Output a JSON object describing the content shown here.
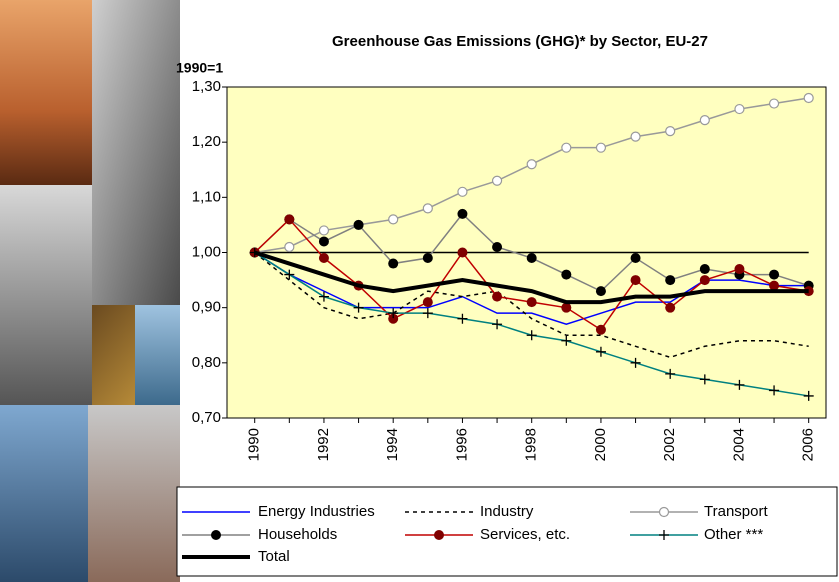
{
  "chart_data": {
    "type": "line",
    "title": "Greenhouse Gas Emissions (GHG)* by Sector, EU-27",
    "y_label": "1990=1",
    "x": [
      1990,
      1991,
      1992,
      1993,
      1994,
      1995,
      1996,
      1997,
      1998,
      1999,
      2000,
      2001,
      2002,
      2003,
      2004,
      2005,
      2006
    ],
    "xlim": [
      1989.2,
      2006.5
    ],
    "xticks": [
      1990,
      1992,
      1994,
      1996,
      1998,
      2000,
      2002,
      2004,
      2006
    ],
    "ylim": [
      0.7,
      1.3
    ],
    "yticks": [
      {
        "value": 0.7,
        "label": "0,70"
      },
      {
        "value": 0.8,
        "label": "0,80"
      },
      {
        "value": 0.9,
        "label": "0,90"
      },
      {
        "value": 1.0,
        "label": "1,00"
      },
      {
        "value": 1.1,
        "label": "1,10"
      },
      {
        "value": 1.2,
        "label": "1,20"
      },
      {
        "value": 1.3,
        "label": "1,30"
      }
    ],
    "reference_line": 1.0,
    "series": [
      {
        "name": "Energy Industries",
        "color": "#0000ff",
        "dash": "solid",
        "width": 1.5,
        "marker": "none",
        "values": [
          1.0,
          0.96,
          0.93,
          0.9,
          0.9,
          0.9,
          0.92,
          0.89,
          0.89,
          0.87,
          0.89,
          0.91,
          0.91,
          0.95,
          0.95,
          0.94,
          0.94
        ]
      },
      {
        "name": "Industry",
        "color": "#000000",
        "dash": "dashed",
        "width": 1.5,
        "marker": "none",
        "values": [
          1.0,
          0.95,
          0.9,
          0.88,
          0.89,
          0.93,
          0.92,
          0.93,
          0.88,
          0.85,
          0.85,
          0.83,
          0.81,
          0.83,
          0.84,
          0.84,
          0.83
        ]
      },
      {
        "name": "Transport",
        "color": "#999999",
        "dash": "solid",
        "width": 1.5,
        "marker": "circle-open",
        "values": [
          1.0,
          1.01,
          1.04,
          1.05,
          1.06,
          1.08,
          1.11,
          1.13,
          1.16,
          1.19,
          1.19,
          1.21,
          1.22,
          1.24,
          1.26,
          1.27,
          1.28
        ]
      },
      {
        "name": "Households",
        "color": "#808080",
        "dash": "solid",
        "width": 1.5,
        "marker": "circle-black",
        "values": [
          1.0,
          1.06,
          1.02,
          1.05,
          0.98,
          0.99,
          1.07,
          1.01,
          0.99,
          0.96,
          0.93,
          0.99,
          0.95,
          0.97,
          0.96,
          0.96,
          0.94
        ]
      },
      {
        "name": "Services, etc.",
        "color": "#c00000",
        "dash": "solid",
        "width": 1.5,
        "marker": "circle-darkred",
        "values": [
          1.0,
          1.06,
          0.99,
          0.94,
          0.88,
          0.91,
          1.0,
          0.92,
          0.91,
          0.9,
          0.86,
          0.95,
          0.9,
          0.95,
          0.97,
          0.94,
          0.93
        ]
      },
      {
        "name": "Other ***",
        "color": "#008080",
        "dash": "solid",
        "width": 1.5,
        "marker": "plus",
        "values": [
          1.0,
          0.96,
          0.92,
          0.9,
          0.89,
          0.89,
          0.88,
          0.87,
          0.85,
          0.84,
          0.82,
          0.8,
          0.78,
          0.77,
          0.76,
          0.75,
          0.74
        ]
      },
      {
        "name": "Total",
        "color": "#000000",
        "dash": "solid",
        "width": 4,
        "marker": "none",
        "values": [
          1.0,
          0.98,
          0.96,
          0.94,
          0.93,
          0.94,
          0.95,
          0.94,
          0.93,
          0.91,
          0.91,
          0.92,
          0.92,
          0.93,
          0.93,
          0.93,
          0.93
        ]
      }
    ]
  }
}
